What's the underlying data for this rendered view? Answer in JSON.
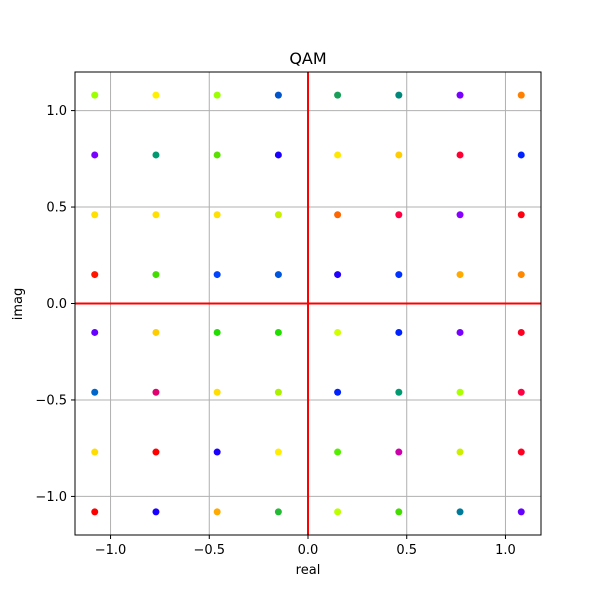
{
  "chart_data": {
    "type": "scatter",
    "title": "QAM",
    "xlabel": "real",
    "ylabel": "imag",
    "xlim": [
      -1.18,
      1.18
    ],
    "ylim": [
      -1.2,
      1.2
    ],
    "xticks": [
      -1.0,
      -0.5,
      0.0,
      0.5,
      1.0
    ],
    "yticks": [
      -1.0,
      -0.5,
      0.0,
      0.5,
      1.0
    ],
    "xtick_labels": [
      "−1.0",
      "−0.5",
      "0.0",
      "0.5",
      "1.0"
    ],
    "ytick_labels": [
      "−1.0",
      "−0.5",
      "0.0",
      "0.5",
      "1.0"
    ],
    "grid": true,
    "reference_lines": {
      "x": 0.0,
      "y": 0.0,
      "color": "#ff0000"
    },
    "levels": [
      -1.08,
      -0.77,
      -0.46,
      -0.15,
      0.15,
      0.46,
      0.77,
      1.08
    ],
    "points_by_row": [
      {
        "imag": 1.08,
        "colors": [
          "#9dff00",
          "#fff000",
          "#9dff00",
          "#0055cc",
          "#1a9f5a",
          "#00897a",
          "#7700ff",
          "#ff7f00"
        ]
      },
      {
        "imag": 0.77,
        "colors": [
          "#7a00ff",
          "#009970",
          "#5ae000",
          "#1a00ff",
          "#ffe800",
          "#ffcc00",
          "#ff0033",
          "#0022ff"
        ]
      },
      {
        "imag": 0.46,
        "colors": [
          "#ffe000",
          "#ffe000",
          "#ffe000",
          "#c8f000",
          "#ff6600",
          "#ff0044",
          "#8800ff",
          "#ff0010"
        ]
      },
      {
        "imag": 0.15,
        "colors": [
          "#ff1500",
          "#44dd00",
          "#0044ff",
          "#0055dd",
          "#2200ff",
          "#0033ff",
          "#ffaa00",
          "#ff8800"
        ]
      },
      {
        "imag": -0.15,
        "colors": [
          "#6600ff",
          "#ffcc00",
          "#22dd00",
          "#22dd00",
          "#d0ff00",
          "#0022ff",
          "#7700ff",
          "#ff0022"
        ]
      },
      {
        "imag": -0.46,
        "colors": [
          "#0066cc",
          "#e00070",
          "#ffdd00",
          "#aaf000",
          "#0022ff",
          "#009970",
          "#aaff00",
          "#ff0044"
        ]
      },
      {
        "imag": -0.77,
        "colors": [
          "#ffdd00",
          "#ff0000",
          "#1a00ff",
          "#ffee00",
          "#55ee00",
          "#cc00aa",
          "#ccee00",
          "#ff0022"
        ]
      },
      {
        "imag": -1.08,
        "colors": [
          "#ff0000",
          "#1a00ff",
          "#ffaa00",
          "#22bb33",
          "#bbff00",
          "#44dd00",
          "#007a99",
          "#6600ff"
        ]
      }
    ]
  }
}
